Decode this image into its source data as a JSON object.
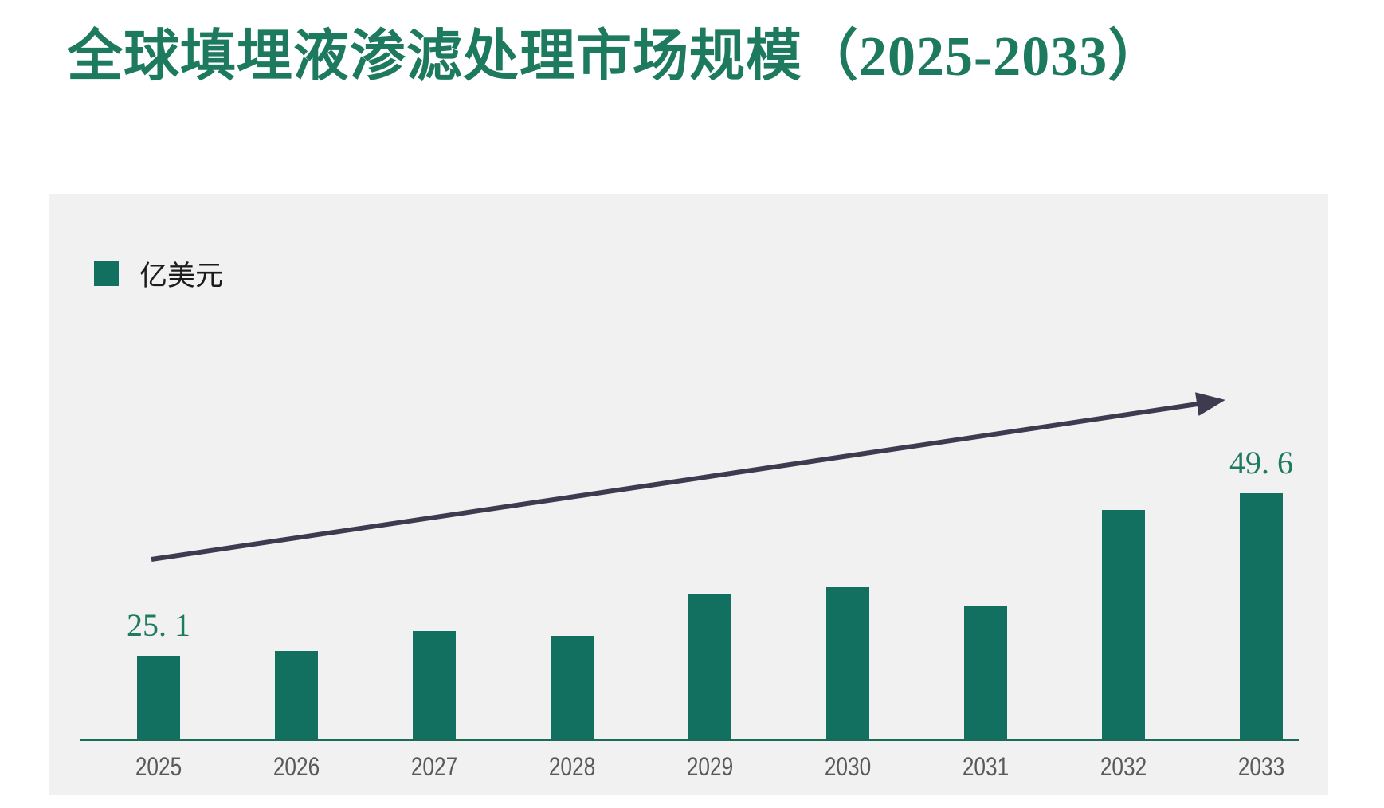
{
  "page": {
    "title": "全球填埋液渗滤处理市场规模（2025-2033）"
  },
  "legend": {
    "label": "亿美元",
    "swatch_color": "#11705F"
  },
  "colors": {
    "title_green": "#1E7A5E",
    "bar_green": "#11705F",
    "value_label_green": "#1E7B60",
    "panel_background": "#F1F1F2",
    "page_background": "#FFFFFF",
    "axis_line_green": "#1A6B57",
    "tick_label_gray": "#595959",
    "trend_arrow_dark": "#3E3B50"
  },
  "chart_data": {
    "type": "bar",
    "title": "全球填埋液渗滤处理市场规模（2025-2033）",
    "unit": "亿美元",
    "legend": [
      "亿美元"
    ],
    "legend_position": "top-left",
    "grid": false,
    "y_axis_visible": false,
    "x_axis_line": true,
    "ylim": [
      12.3,
      55
    ],
    "categories": [
      "2025",
      "2026",
      "2027",
      "2028",
      "2029",
      "2030",
      "2031",
      "2032",
      "2033"
    ],
    "series": [
      {
        "name": "亿美元",
        "values": [
          25.1,
          25.8,
          28.8,
          28.1,
          34.3,
          35.4,
          32.5,
          47.1,
          49.6
        ]
      }
    ],
    "data_labels": [
      {
        "category": "2025",
        "text": "25. 1"
      },
      {
        "category": "2033",
        "text": "49. 6"
      }
    ],
    "annotations": {
      "trend_arrow": "ascending-left-to-right"
    }
  }
}
